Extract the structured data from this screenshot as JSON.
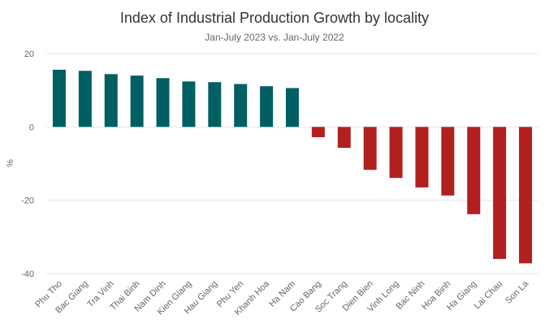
{
  "chart_data": {
    "type": "bar",
    "title": "Index of Industrial Production Growth by locality",
    "subtitle": "Jan-July 2023 vs. Jan-July 2022",
    "xlabel": "",
    "ylabel": "%",
    "ylim": [
      -40,
      20
    ],
    "yticks": [
      -40,
      -20,
      0,
      20
    ],
    "grid": true,
    "legend": "none",
    "categories": [
      "Phu Tho",
      "Bac Giang",
      "Tra Vinh",
      "Thai Binh",
      "Nam Dinh",
      "Kien Giang",
      "Hau Giang",
      "Phu Yen",
      "Khanh Hoa",
      "Ha Nam",
      "Cao Bang",
      "Soc Trang",
      "Dien Bien",
      "Vinh Long",
      "Bac Ninh",
      "Hoa Binh",
      "Ha Giang",
      "Lai Chau",
      "Son La"
    ],
    "values": [
      15.6,
      15.3,
      14.4,
      14.0,
      13.3,
      12.4,
      12.2,
      11.7,
      11.1,
      10.6,
      -2.8,
      -5.7,
      -11.7,
      -13.9,
      -16.5,
      -18.7,
      -23.8,
      -36.0,
      -37.2
    ],
    "colors": {
      "positive": "#005f62",
      "negative": "#b11f1f"
    }
  }
}
